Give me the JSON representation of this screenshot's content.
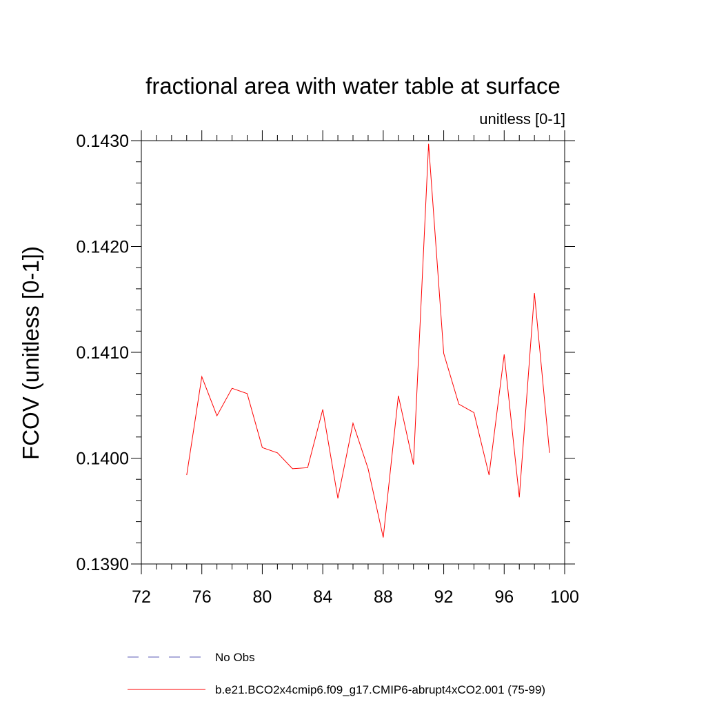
{
  "chart_data": {
    "type": "line",
    "title": "fractional area with water table at surface",
    "subtitle": "unitless [0-1]",
    "xlabel": "",
    "ylabel": "FCOV  (unitless [0-1])",
    "xlim": [
      72,
      100
    ],
    "ylim": [
      0.139,
      0.143
    ],
    "x_ticks": [
      "72",
      "76",
      "80",
      "84",
      "88",
      "92",
      "96",
      "100"
    ],
    "y_ticks": [
      "0.1390",
      "0.1400",
      "0.1410",
      "0.1420",
      "0.1430"
    ],
    "grid": false,
    "legend_position": "bottom",
    "series": [
      {
        "name": "b.e21.BCO2x4cmip6.f09_g17.CMIP6-abrupt4xCO2.001 (75-99)",
        "color": "#ff0000",
        "style": "solid",
        "x": [
          75,
          76,
          77,
          78,
          79,
          80,
          81,
          82,
          83,
          84,
          85,
          86,
          87,
          88,
          89,
          90,
          91,
          92,
          93,
          94,
          95,
          96,
          97,
          98,
          99
        ],
        "values": [
          0.13984,
          0.14077,
          0.1404,
          0.14066,
          0.14061,
          0.1401,
          0.14005,
          0.1399,
          0.13991,
          0.14046,
          0.13962,
          0.14033,
          0.1399,
          0.13925,
          0.14059,
          0.13994,
          0.14297,
          0.14099,
          0.14051,
          0.14043,
          0.13984,
          0.14098,
          0.13963,
          0.14156,
          0.14005
        ]
      }
    ],
    "legend": [
      {
        "label": "No Obs",
        "color": "#5a5ab4",
        "style": "dashed"
      },
      {
        "label": "b.e21.BCO2x4cmip6.f09_g17.CMIP6-abrupt4xCO2.001 (75-99)",
        "color": "#ff0000",
        "style": "solid"
      }
    ]
  }
}
